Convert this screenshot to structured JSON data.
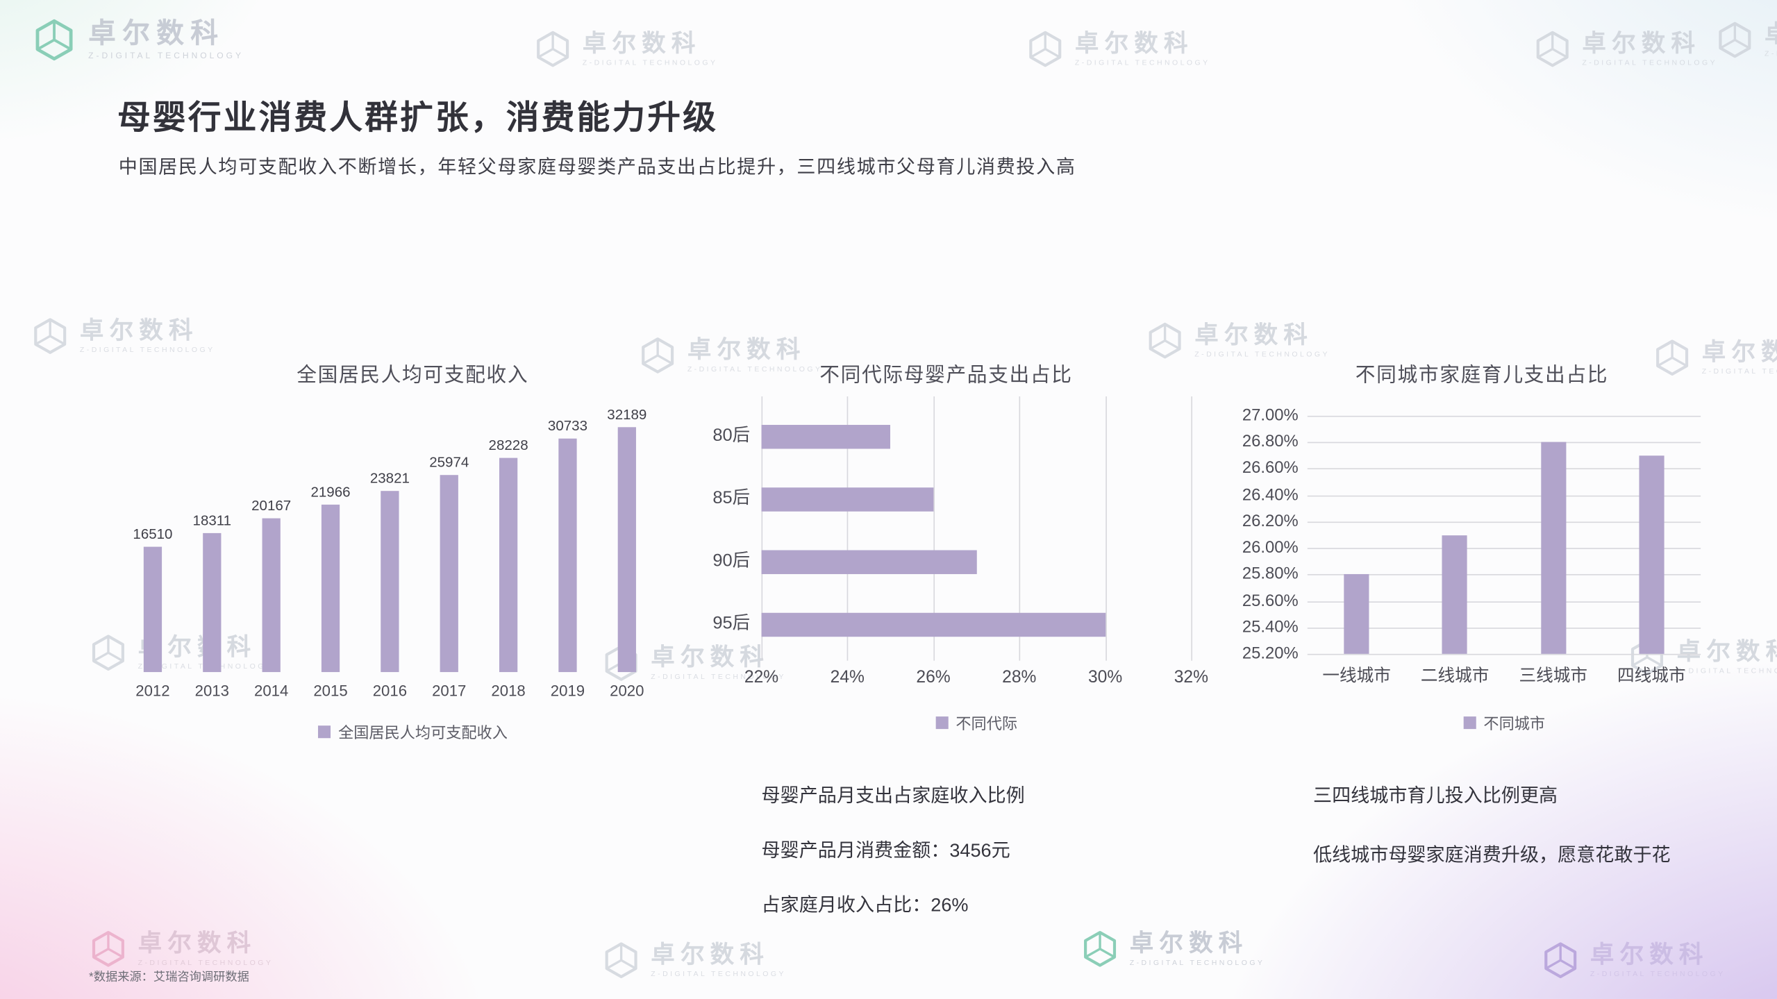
{
  "header": {
    "title": "母婴行业消费人群扩张，消费能力升级",
    "subtitle": "中国居民人均可支配收入不断增长，年轻父母家庭母婴类产品支出占比提升，三四线城市父母育儿消费投入高"
  },
  "watermark": {
    "text": "卓尔数科",
    "subtext": "Z-DIGITAL TECHNOLOGY"
  },
  "chart_data": [
    {
      "type": "bar",
      "title": "全国居民人均可支配收入",
      "categories": [
        "2012",
        "2013",
        "2014",
        "2015",
        "2016",
        "2017",
        "2018",
        "2019",
        "2020"
      ],
      "values": [
        16510,
        18311,
        20167,
        21966,
        23821,
        25974,
        28228,
        30733,
        32189
      ],
      "ylim": [
        0,
        32189
      ],
      "data_labels": true,
      "legend": [
        "全国居民人均可支配收入"
      ],
      "legend_position": "bottom",
      "grid": false
    },
    {
      "type": "bar-horizontal",
      "title": "不同代际母婴产品支出占比",
      "categories": [
        "80后",
        "85后",
        "90后",
        "95后"
      ],
      "values": [
        25,
        26,
        27,
        30
      ],
      "unit": "%",
      "xlim": [
        22,
        32
      ],
      "xticks": [
        "22%",
        "24%",
        "26%",
        "28%",
        "30%",
        "32%"
      ],
      "legend": [
        "不同代际"
      ],
      "legend_position": "bottom",
      "grid": true
    },
    {
      "type": "bar",
      "title": "不同城市家庭育儿支出占比",
      "categories": [
        "一线城市",
        "二线城市",
        "三线城市",
        "四线城市"
      ],
      "values": [
        25.8,
        26.1,
        26.8,
        26.7
      ],
      "unit": "%",
      "ylim": [
        25.2,
        27.0
      ],
      "yticks": [
        "27.00%",
        "26.80%",
        "26.60%",
        "26.40%",
        "26.20%",
        "26.00%",
        "25.80%",
        "25.60%",
        "25.40%",
        "25.20%"
      ],
      "legend": [
        "不同城市"
      ],
      "legend_position": "bottom",
      "grid": true
    }
  ],
  "notes": {
    "middle": [
      "母婴产品月支出占家庭收入比例",
      "母婴产品月消费金额：3456元",
      "占家庭月收入占比：26%"
    ],
    "right_title": "三四线城市育儿投入比例更高",
    "right_body": "低线城市母婴家庭消费升级，愿意花敢于花"
  },
  "footer": {
    "source": "*数据来源：艾瑞咨询调研数据"
  },
  "colors": {
    "bar": "#b1a4cb",
    "grid": "#d8d8dd"
  }
}
